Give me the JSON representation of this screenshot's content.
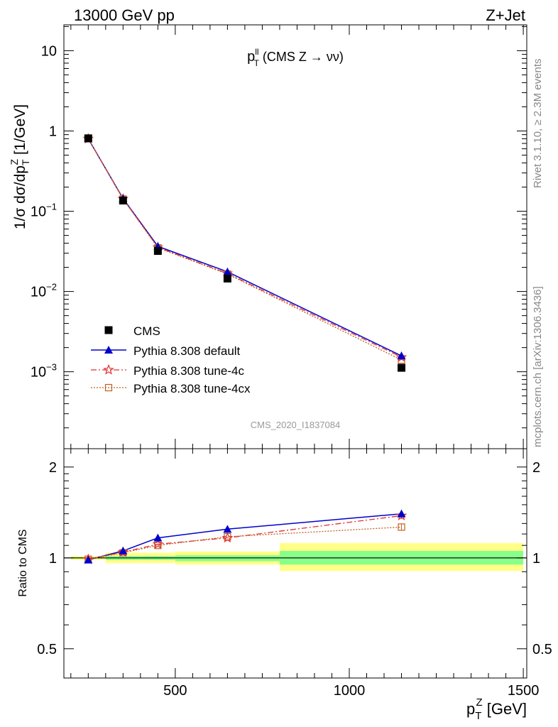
{
  "header": {
    "energy_label": "13000 GeV pp",
    "process_label": "Z+Jet"
  },
  "side_labels": {
    "rivet": "Rivet 3.1.10, ≥ 2.3M events",
    "mcplots": "mcplots.cern.ch [arXiv:1306.3436]"
  },
  "analysis_id": "CMS_2020_I1837084",
  "colors": {
    "cms": "#000000",
    "default": "#0000cc",
    "tune4c": "#e03030",
    "tune4cx": "#c06020",
    "band_yellow": "#ffff88",
    "band_green": "#88ff88"
  },
  "chart_data": [
    {
      "type": "line",
      "panel": "main",
      "title": "p_T^{ll} (CMS Z → νν)",
      "title_parts": {
        "p": "p",
        "sup": "ll",
        "sub": "T",
        "rest": " (CMS Z → νν)"
      },
      "ylabel": "1/σ dσ/dp_T^Z [1/GeV]",
      "ylabel_parts": {
        "a": "1/σ dσ/dp",
        "sub": "T",
        "sup": "Z",
        "b": " [1/GeV]"
      },
      "xlim": [
        180,
        1510
      ],
      "ylim": [
        0.00011,
        21
      ],
      "yscale": "log",
      "y_ticks": [
        {
          "v": 10,
          "label": "10"
        },
        {
          "v": 1,
          "label": "1"
        },
        {
          "v": 0.1,
          "label": "10",
          "exp": "−1"
        },
        {
          "v": 0.01,
          "label": "10",
          "exp": "−2"
        },
        {
          "v": 0.001,
          "label": "10",
          "exp": "−3"
        }
      ],
      "legend_position": "lower-left",
      "x": [
        250,
        350,
        450,
        650,
        1150
      ],
      "series": [
        {
          "name": "CMS",
          "key": "cms",
          "values": [
            0.81,
            0.136,
            0.032,
            0.0145,
            0.00112
          ]
        },
        {
          "name": "Pythia 8.308 default",
          "key": "default",
          "values": [
            0.8,
            0.144,
            0.0365,
            0.0176,
            0.00158
          ]
        },
        {
          "name": "Pythia 8.308 tune-4c",
          "key": "tune4c",
          "values": [
            0.8,
            0.143,
            0.0355,
            0.0168,
            0.00152
          ]
        },
        {
          "name": "Pythia 8.308 tune-4cx",
          "key": "tune4cx",
          "values": [
            0.8,
            0.142,
            0.035,
            0.0165,
            0.0014
          ]
        }
      ]
    },
    {
      "type": "line",
      "panel": "ratio",
      "ylabel": "Ratio to CMS",
      "xlabel": "p_T^Z [GeV]",
      "xlabel_parts": {
        "p": "p",
        "sub": "T",
        "sup": "Z",
        "rest": " [GeV]"
      },
      "xlim": [
        180,
        1510
      ],
      "ylim": [
        0.4,
        2.3
      ],
      "yscale": "log",
      "x_ticks": [
        500,
        1000,
        1500
      ],
      "y_ticks": [
        {
          "v": 2,
          "label": "2"
        },
        {
          "v": 1,
          "label": "1"
        },
        {
          "v": 0.5,
          "label": "0.5"
        }
      ],
      "x": [
        250,
        350,
        450,
        650,
        1150
      ],
      "series": [
        {
          "key": "default",
          "values": [
            0.985,
            1.055,
            1.165,
            1.245,
            1.4
          ]
        },
        {
          "key": "tune4c",
          "values": [
            0.99,
            1.045,
            1.11,
            1.165,
            1.38
          ]
        },
        {
          "key": "tune4cx",
          "values": [
            0.99,
            1.04,
            1.1,
            1.175,
            1.265
          ]
        }
      ],
      "bands": [
        {
          "x0": 200,
          "x1": 300,
          "yellow": [
            0.985,
            1.015
          ],
          "green": [
            0.995,
            1.005
          ]
        },
        {
          "x0": 300,
          "x1": 400,
          "yellow": [
            0.96,
            1.04
          ],
          "green": [
            0.985,
            1.015
          ]
        },
        {
          "x0": 400,
          "x1": 500,
          "yellow": [
            0.96,
            1.04
          ],
          "green": [
            0.985,
            1.015
          ]
        },
        {
          "x0": 500,
          "x1": 800,
          "yellow": [
            0.95,
            1.05
          ],
          "green": [
            0.975,
            1.02
          ]
        },
        {
          "x0": 800,
          "x1": 1500,
          "yellow": [
            0.905,
            1.12
          ],
          "green": [
            0.95,
            1.055
          ]
        }
      ]
    }
  ]
}
